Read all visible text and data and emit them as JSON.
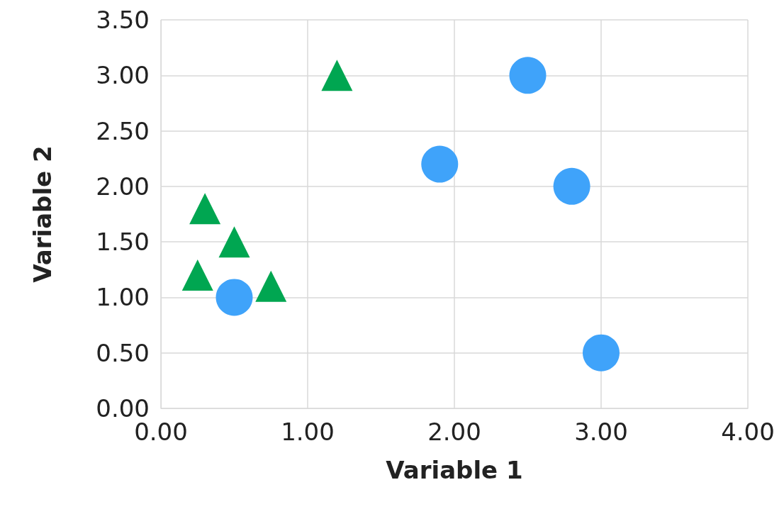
{
  "chart_data": {
    "type": "scatter",
    "xlabel": "Variable 1",
    "ylabel": "Variable 2",
    "xlim": [
      0,
      4
    ],
    "xticks": [
      {
        "value": 0,
        "label": "0.00"
      },
      {
        "value": 1,
        "label": "1.00"
      },
      {
        "value": 2,
        "label": "2.00"
      },
      {
        "value": 3,
        "label": "3.00"
      },
      {
        "value": 4,
        "label": "4.00"
      }
    ],
    "ylim": [
      0,
      3.5
    ],
    "yticks": [
      {
        "value": 0,
        "label": "0.00"
      },
      {
        "value": 0.5,
        "label": "0.50"
      },
      {
        "value": 1,
        "label": "1.00"
      },
      {
        "value": 1.5,
        "label": "1.50"
      },
      {
        "value": 2,
        "label": "2.00"
      },
      {
        "value": 2.5,
        "label": "2.50"
      },
      {
        "value": 3,
        "label": "3.00"
      },
      {
        "value": 3.5,
        "label": "3.50"
      }
    ],
    "grid": true,
    "series": [
      {
        "color": "#3fa3fa",
        "marker": "circle",
        "x": [
          0.5,
          1.9,
          2.5,
          2.8,
          3.0
        ],
        "values": [
          1.0,
          2.2,
          3.0,
          2.0,
          0.5
        ]
      },
      {
        "color": "#00a651",
        "marker": "triangle",
        "x": [
          1.2,
          0.3,
          0.5,
          0.25,
          0.75
        ],
        "values": [
          3.0,
          1.8,
          1.5,
          1.2,
          1.1
        ]
      }
    ]
  }
}
